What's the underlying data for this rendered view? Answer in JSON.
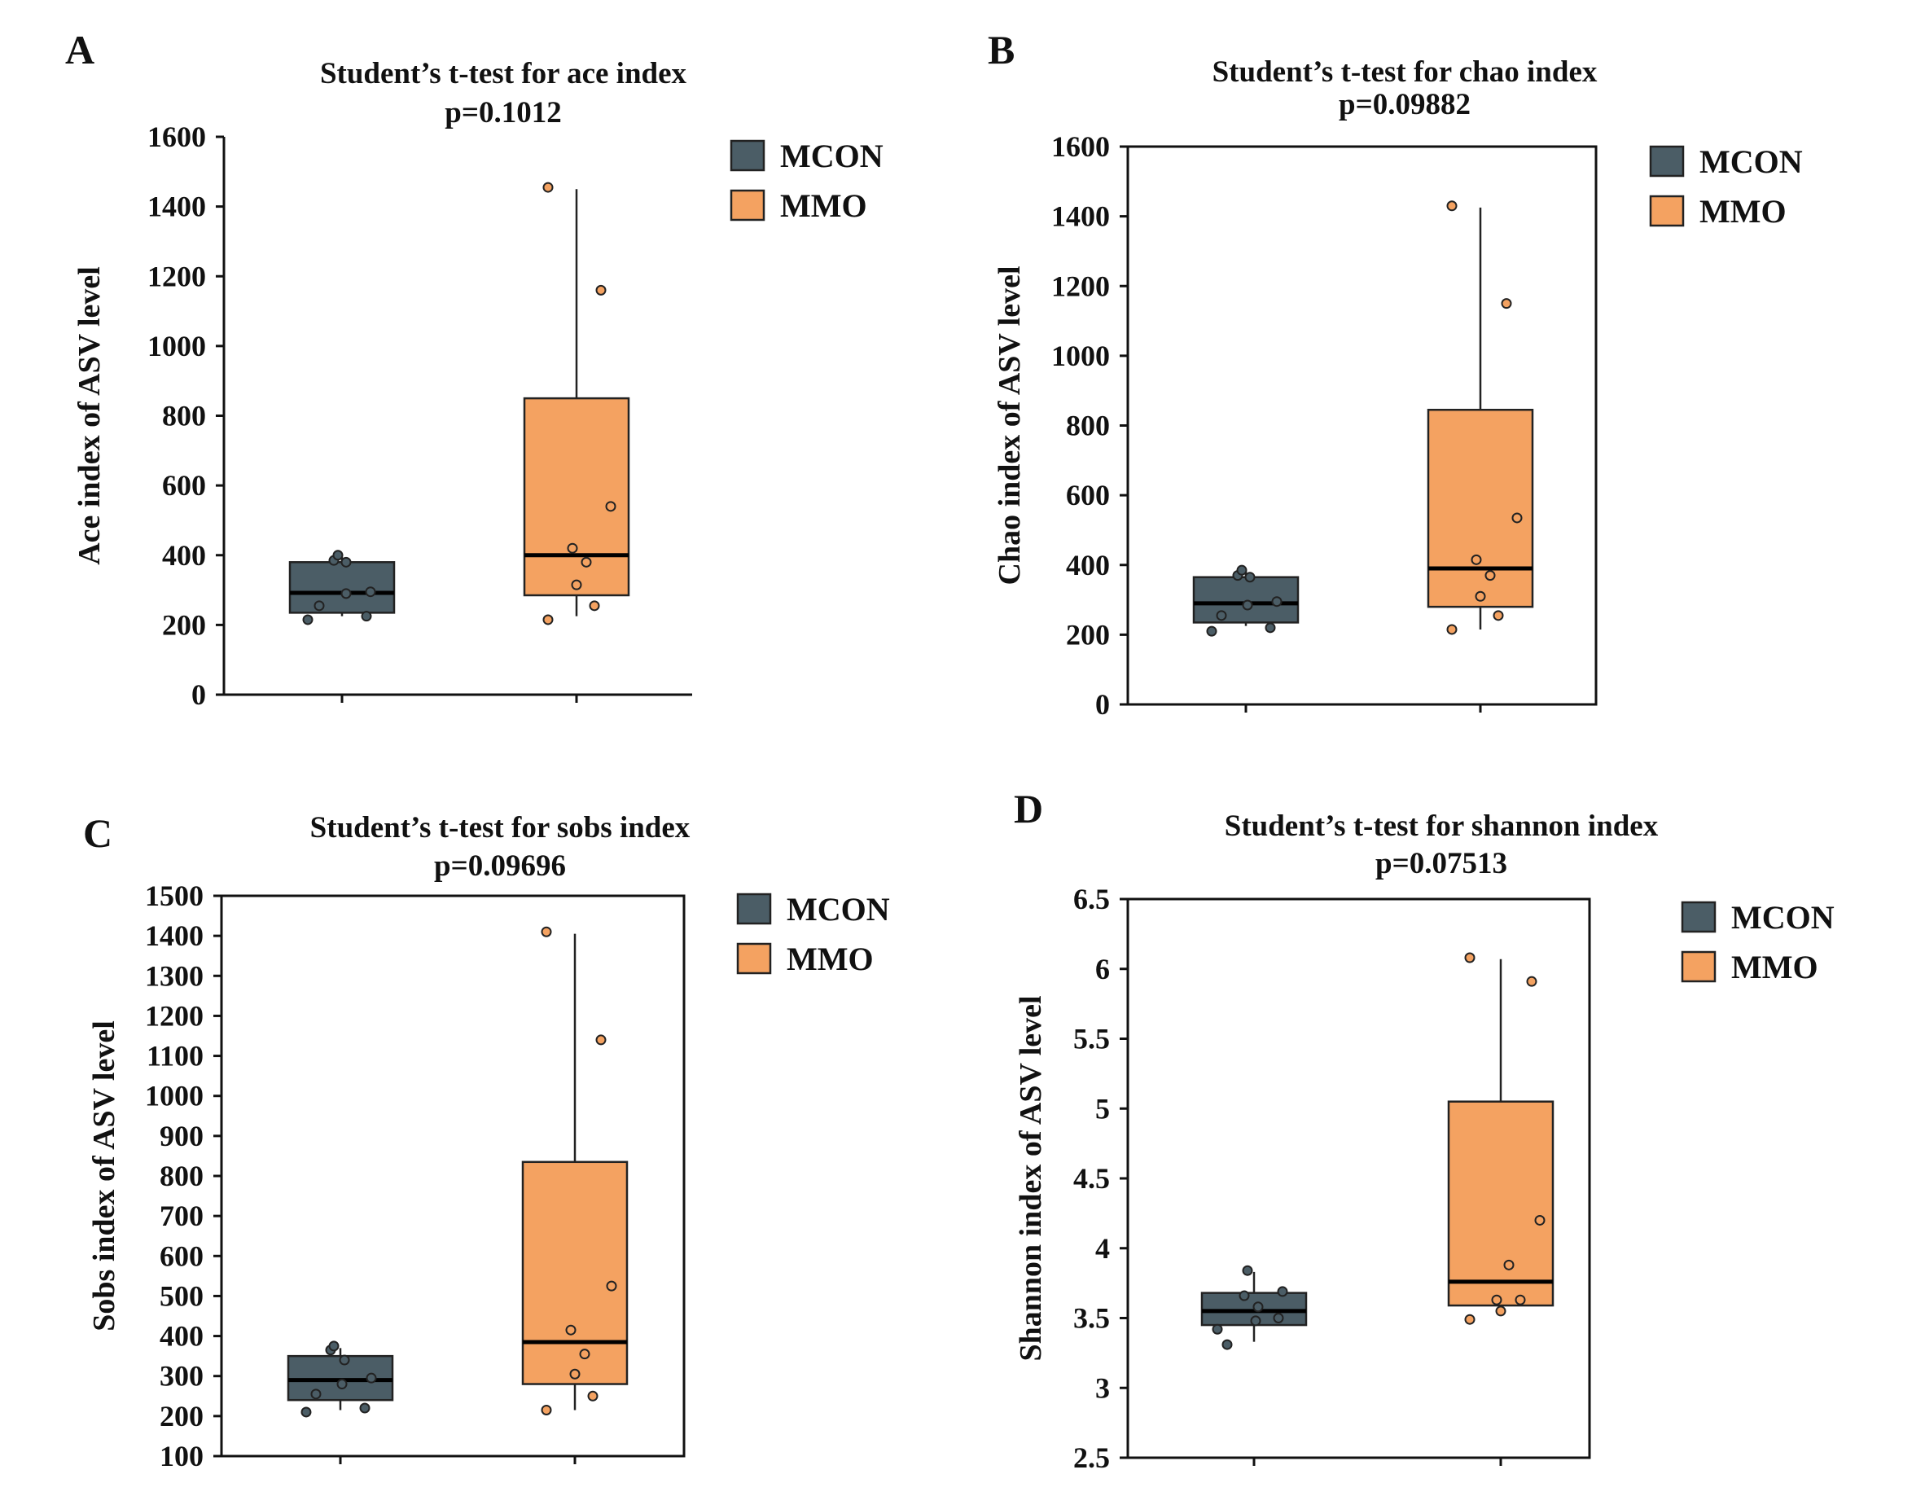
{
  "colors": {
    "MCON": "#4b5d66",
    "MMO": "#f4a261",
    "median": "#000000",
    "whisker": "#222222"
  },
  "chart_data": [
    {
      "panel": "A",
      "type": "box",
      "title": "Student’s t-test for ace index",
      "subtitle": "p=0.1012",
      "ylabel": "Ace index of ASV level",
      "ylim": [
        0,
        1600
      ],
      "yticks": [
        0,
        200,
        400,
        600,
        800,
        1000,
        1200,
        1400,
        1600
      ],
      "frame": "open",
      "legend": [
        "MCON",
        "MMO"
      ],
      "groups": [
        {
          "name": "MCON",
          "q1": 235,
          "median": 292,
          "q3": 380,
          "whisker_low": 225,
          "whisker_high": 395,
          "points": [
            [
              -0.42,
              215
            ],
            [
              -0.28,
              255
            ],
            [
              -0.1,
              385
            ],
            [
              -0.05,
              400
            ],
            [
              0.05,
              380
            ],
            [
              0.05,
              290
            ],
            [
              0.3,
              225
            ],
            [
              0.35,
              295
            ]
          ]
        },
        {
          "name": "MMO",
          "q1": 285,
          "median": 400,
          "q3": 850,
          "whisker_low": 225,
          "whisker_high": 1450,
          "points": [
            [
              -0.35,
              1455
            ],
            [
              -0.35,
              215
            ],
            [
              -0.05,
              420
            ],
            [
              0.0,
              315
            ],
            [
              0.12,
              380
            ],
            [
              0.22,
              255
            ],
            [
              0.3,
              1160
            ],
            [
              0.42,
              540
            ]
          ]
        }
      ]
    },
    {
      "panel": "B",
      "type": "box",
      "title": "Student’s t-test for chao index",
      "subtitle": "p=0.09882",
      "ylabel": "Chao index of ASV level",
      "ylim": [
        0,
        1600
      ],
      "yticks": [
        0,
        200,
        400,
        600,
        800,
        1000,
        1200,
        1400,
        1600
      ],
      "frame": "box",
      "legend": [
        "MCON",
        "MMO"
      ],
      "groups": [
        {
          "name": "MCON",
          "q1": 235,
          "median": 290,
          "q3": 365,
          "whisker_low": 225,
          "whisker_high": 385,
          "points": [
            [
              -0.42,
              210
            ],
            [
              -0.3,
              255
            ],
            [
              -0.1,
              370
            ],
            [
              -0.05,
              385
            ],
            [
              0.05,
              365
            ],
            [
              0.02,
              285
            ],
            [
              0.3,
              220
            ],
            [
              0.38,
              295
            ]
          ]
        },
        {
          "name": "MMO",
          "q1": 280,
          "median": 390,
          "q3": 845,
          "whisker_low": 215,
          "whisker_high": 1425,
          "points": [
            [
              -0.35,
              1430
            ],
            [
              -0.35,
              215
            ],
            [
              -0.05,
              415
            ],
            [
              0.0,
              310
            ],
            [
              0.12,
              370
            ],
            [
              0.22,
              255
            ],
            [
              0.32,
              1150
            ],
            [
              0.45,
              535
            ]
          ]
        }
      ]
    },
    {
      "panel": "C",
      "type": "box",
      "title": "Student’s t-test for sobs index",
      "subtitle": "p=0.09696",
      "ylabel": "Sobs index of ASV level",
      "ylim": [
        100,
        1500
      ],
      "yticks": [
        100,
        200,
        300,
        400,
        500,
        600,
        700,
        800,
        900,
        1000,
        1100,
        1200,
        1300,
        1400,
        1500
      ],
      "frame": "box",
      "legend": [
        "MCON",
        "MMO"
      ],
      "groups": [
        {
          "name": "MCON",
          "q1": 240,
          "median": 290,
          "q3": 350,
          "whisker_low": 215,
          "whisker_high": 370,
          "points": [
            [
              -0.42,
              210
            ],
            [
              -0.3,
              255
            ],
            [
              -0.12,
              365
            ],
            [
              -0.08,
              375
            ],
            [
              0.05,
              340
            ],
            [
              0.02,
              280
            ],
            [
              0.3,
              220
            ],
            [
              0.38,
              295
            ]
          ]
        },
        {
          "name": "MMO",
          "q1": 280,
          "median": 385,
          "q3": 835,
          "whisker_low": 215,
          "whisker_high": 1405,
          "points": [
            [
              -0.35,
              1410
            ],
            [
              -0.35,
              215
            ],
            [
              -0.05,
              415
            ],
            [
              0.0,
              305
            ],
            [
              0.12,
              355
            ],
            [
              0.22,
              250
            ],
            [
              0.32,
              1140
            ],
            [
              0.45,
              525
            ]
          ]
        }
      ]
    },
    {
      "panel": "D",
      "type": "box",
      "title": "Student’s t-test for shannon index",
      "subtitle": "p=0.07513",
      "ylabel": "Shannon index of ASV level",
      "ylim": [
        2.5,
        6.5
      ],
      "yticks": [
        2.5,
        3,
        3.5,
        4,
        4.5,
        5,
        5.5,
        6,
        6.5
      ],
      "yticklabels": [
        "2.5",
        "3",
        "3.5",
        "4",
        "4.5",
        "5",
        "5.5",
        "6",
        "6.5"
      ],
      "frame": "box",
      "legend": [
        "MCON",
        "MMO"
      ],
      "groups": [
        {
          "name": "MCON",
          "q1": 3.45,
          "median": 3.55,
          "q3": 3.68,
          "whisker_low": 3.33,
          "whisker_high": 3.83,
          "points": [
            [
              -0.45,
              3.42
            ],
            [
              -0.33,
              3.31
            ],
            [
              -0.08,
              3.84
            ],
            [
              -0.12,
              3.66
            ],
            [
              0.02,
              3.48
            ],
            [
              0.05,
              3.58
            ],
            [
              0.3,
              3.5
            ],
            [
              0.35,
              3.69
            ]
          ]
        },
        {
          "name": "MMO",
          "q1": 3.59,
          "median": 3.76,
          "q3": 5.05,
          "whisker_low": 3.59,
          "whisker_high": 6.07,
          "points": [
            [
              -0.38,
              6.08
            ],
            [
              -0.38,
              3.49
            ],
            [
              -0.05,
              3.63
            ],
            [
              0.0,
              3.55
            ],
            [
              0.1,
              3.88
            ],
            [
              0.24,
              3.63
            ],
            [
              0.38,
              5.91
            ],
            [
              0.48,
              4.2
            ]
          ]
        }
      ]
    }
  ]
}
